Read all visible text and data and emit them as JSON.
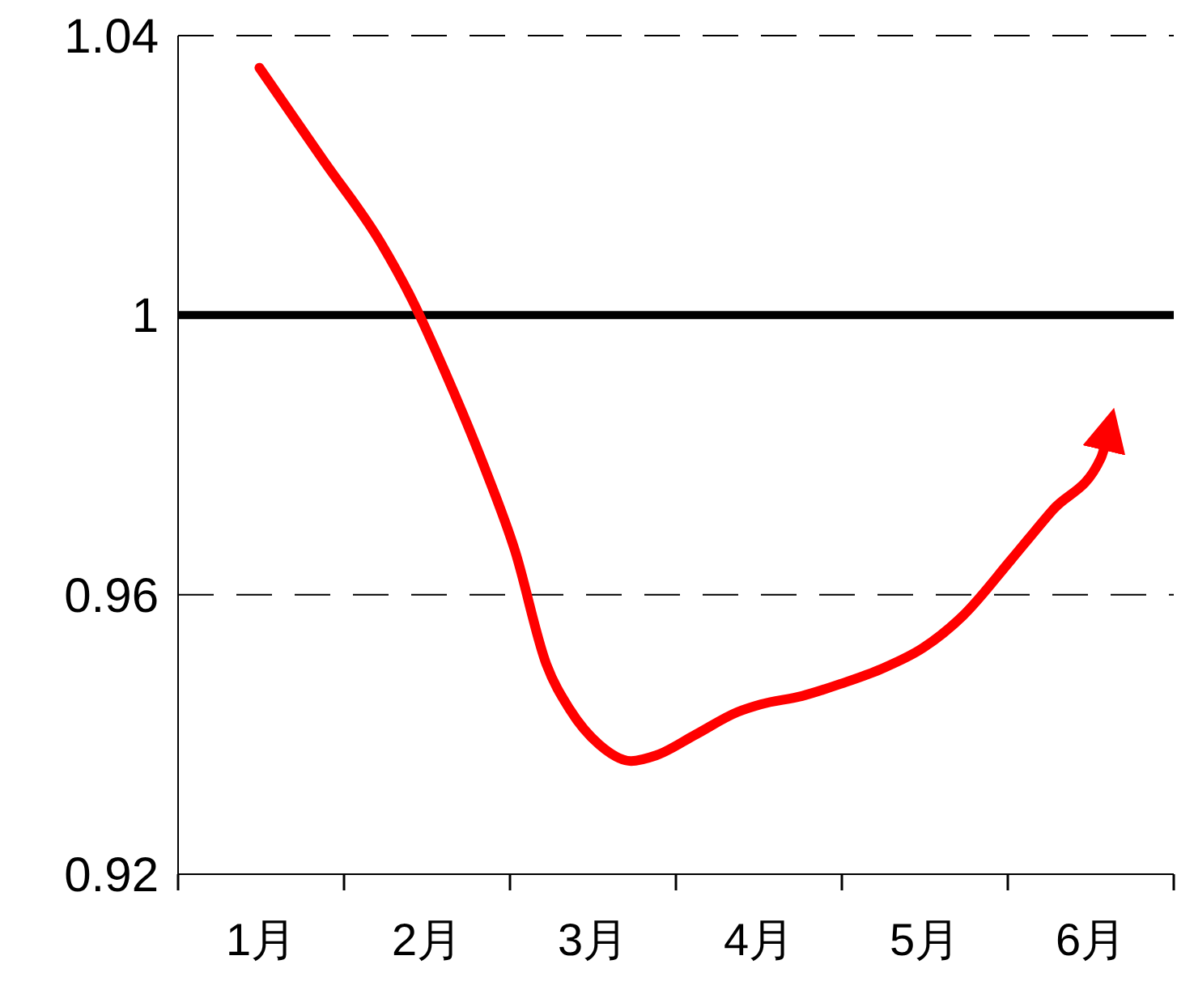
{
  "chart_data": {
    "type": "line",
    "x": [
      0.49,
      0.88,
      1.22,
      1.41,
      1.61,
      1.85,
      2.03,
      2.22,
      2.36,
      2.54,
      2.73,
      2.88,
      3.12,
      3.37,
      3.51,
      3.76,
      4.0,
      4.24,
      4.49,
      4.73,
      5.02,
      5.27,
      5.56,
      5.61
    ],
    "series": [
      {
        "color": "#ff0000",
        "values": [
          1.0354,
          1.022,
          1.0104,
          1.0022,
          0.9918,
          0.978,
          0.9663,
          0.95,
          0.9436,
          0.9385,
          0.9362,
          0.937,
          0.94,
          0.9432,
          0.9443,
          0.9455,
          0.9473,
          0.9494,
          0.9524,
          0.957,
          0.965,
          0.9721,
          0.9795,
          0.9837
        ]
      }
    ],
    "xlim": [
      0,
      6
    ],
    "xticks": [
      {
        "value": 0.5,
        "label": "1月"
      },
      {
        "value": 1.5,
        "label": "2月"
      },
      {
        "value": 2.5,
        "label": "3月"
      },
      {
        "value": 3.5,
        "label": "4月"
      },
      {
        "value": 4.5,
        "label": "5月"
      },
      {
        "value": 5.5,
        "label": "6月"
      }
    ],
    "ylim": [
      0.92,
      1.04
    ],
    "yticks": [
      0.92,
      0.96,
      1,
      1.04
    ],
    "ref_lines": [
      {
        "axis": "y",
        "value": 1,
        "color": "#000000"
      },
      {
        "axis": "y",
        "value": 0.96,
        "color": "#000000",
        "line_style": "dashed"
      },
      {
        "axis": "y",
        "value": 1.04,
        "color": "#000000",
        "line_style": "dashed"
      }
    ],
    "marker": "none",
    "line_style": "solid"
  }
}
